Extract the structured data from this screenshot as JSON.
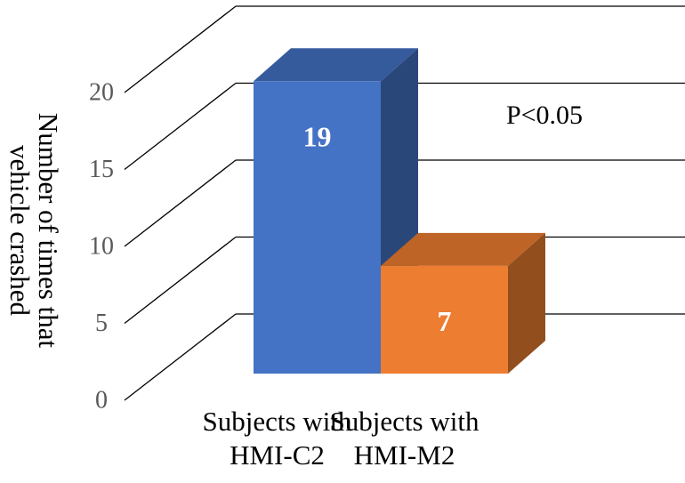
{
  "chart_data": {
    "type": "bar3d",
    "y_label": "Number of times that vehicle crashed",
    "categories": [
      "Subjects with HMI-C2",
      "Subjects with HMI-M2"
    ],
    "values": [
      19,
      7
    ],
    "colors": [
      "#4472c4",
      "#ed7d31"
    ],
    "annotation": "P<0.05",
    "ylim": [
      0,
      20
    ],
    "yticks": [
      0,
      5,
      10,
      15,
      20
    ],
    "grid": true
  }
}
